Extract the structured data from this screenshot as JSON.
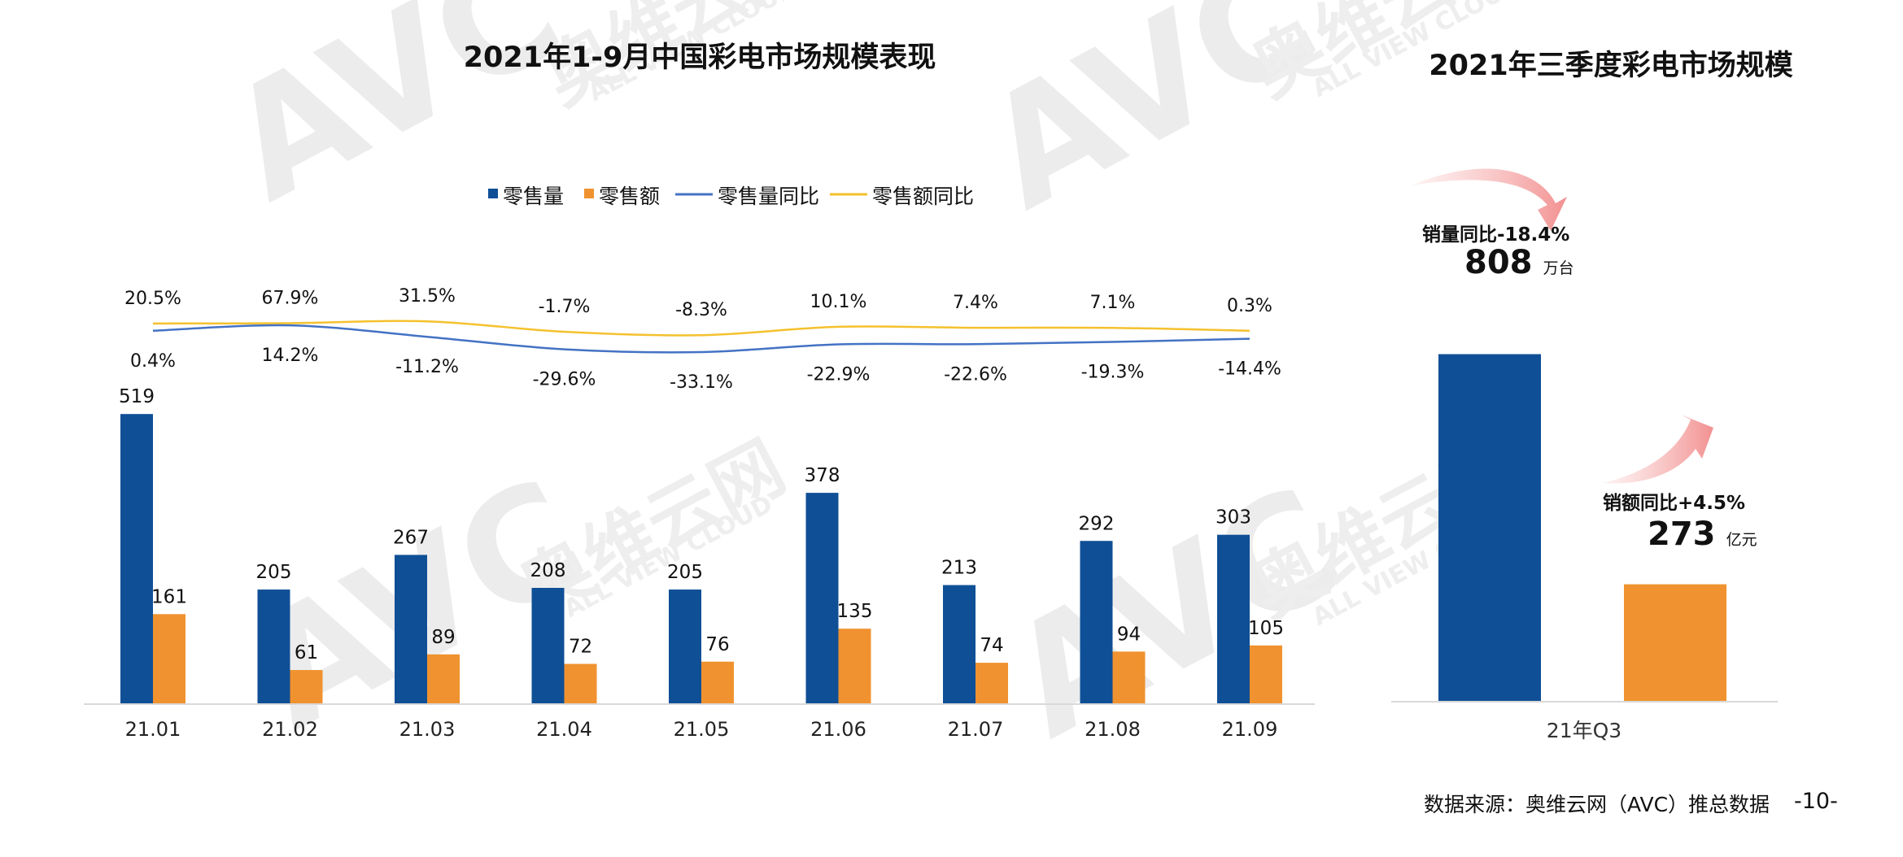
{
  "watermark": {
    "logo_text": "AVC",
    "brand_cn": "奥维云网",
    "brand_en": "ALL VIEW CLOUD"
  },
  "left_chart": {
    "title": "2021年1-9月中国彩电市场规模表现",
    "legend": [
      "零售量",
      "零售额",
      "零售量同比",
      "零售额同比"
    ]
  },
  "right_chart": {
    "title": "2021年三季度彩电市场规模",
    "volume_yoy_label": "销量同比-18.4%",
    "volume_value": "808",
    "volume_unit": "万台",
    "amount_yoy_label": "销额同比+4.5%",
    "amount_value": "273",
    "amount_unit": "亿元",
    "category": "21年Q3"
  },
  "footer": {
    "source": "数据来源：奥维云网（AVC）推总数据",
    "page_number": "-10-"
  },
  "colors": {
    "volume_bar": "#0f4f96",
    "amount_bar": "#f0922f",
    "volume_yoy_line": "#4472c4",
    "amount_yoy_line": "#f5c12e",
    "arrow": "#f59a9a",
    "watermark": "#e9e9e9"
  },
  "chart_data": [
    {
      "type": "bar",
      "title": "2021年1-9月中国彩电市场规模表现",
      "categories": [
        "21.01",
        "21.02",
        "21.03",
        "21.04",
        "21.05",
        "21.06",
        "21.07",
        "21.08",
        "21.09"
      ],
      "series": [
        {
          "name": "零售量",
          "type": "bar",
          "values": [
            519,
            205,
            267,
            208,
            205,
            378,
            213,
            292,
            303
          ]
        },
        {
          "name": "零售额",
          "type": "bar",
          "values": [
            161,
            61,
            89,
            72,
            76,
            135,
            74,
            94,
            105
          ]
        },
        {
          "name": "零售量同比",
          "type": "line",
          "values": [
            0.4,
            14.2,
            -11.2,
            -29.6,
            -33.1,
            -22.9,
            -22.6,
            -19.3,
            -14.4
          ],
          "labels": [
            "0.4%",
            "14.2%",
            "-11.2%",
            "-29.6%",
            "-33.1%",
            "-22.9%",
            "-22.6%",
            "-19.3%",
            "-14.4%"
          ]
        },
        {
          "name": "零售额同比",
          "type": "line",
          "values": [
            20.5,
            67.9,
            31.5,
            -1.7,
            -8.3,
            10.1,
            7.4,
            7.1,
            0.3
          ],
          "labels": [
            "20.5%",
            "67.9%",
            "31.5%",
            "-1.7%",
            "-8.3%",
            "10.1%",
            "7.4%",
            "7.1%",
            "0.3%"
          ]
        }
      ],
      "legend_position": "top-center",
      "grid": false
    },
    {
      "type": "bar",
      "title": "2021年三季度彩电市场规模",
      "categories": [
        "21年Q3"
      ],
      "series": [
        {
          "values": [
            808
          ]
        },
        {
          "values": [
            273
          ]
        }
      ],
      "grid": false
    }
  ]
}
